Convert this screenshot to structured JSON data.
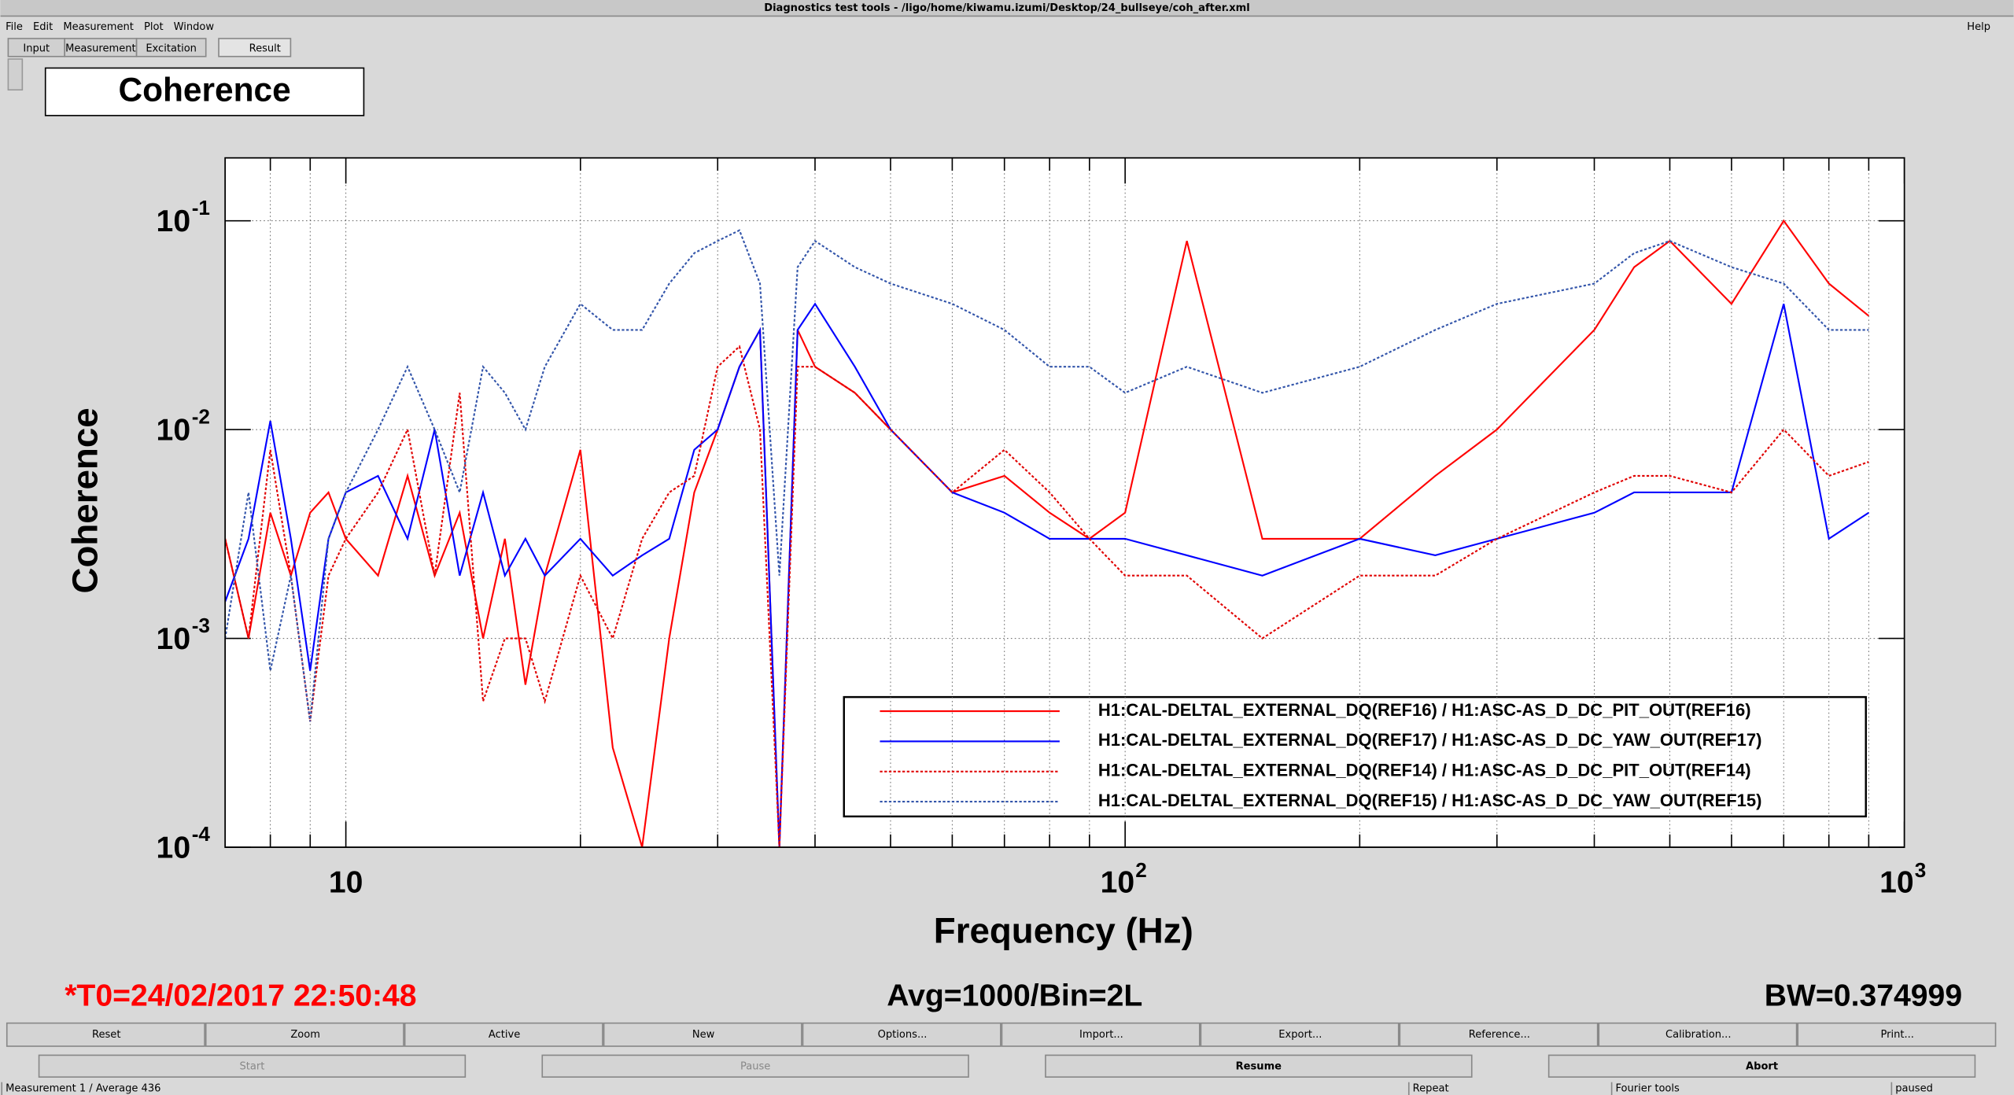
{
  "window_title": "Diagnostics test tools - /ligo/home/kiwamu.izumi/Desktop/24_bullseye/coh_after.xml",
  "menu": [
    "File",
    "Edit",
    "Measurement",
    "Plot",
    "Window"
  ],
  "help": "Help",
  "tabs": [
    "Input",
    "Measurement",
    "Excitation",
    "Result"
  ],
  "panel_title": "Coherence",
  "info": {
    "t0": "*T0=24/02/2017 22:50:48",
    "avg": "Avg=1000/Bin=2L",
    "bw": "BW=0.374999"
  },
  "buttons": [
    "Reset",
    "Zoom",
    "Active",
    "New",
    "Options...",
    "Import...",
    "Export...",
    "Reference...",
    "Calibration...",
    "Print..."
  ],
  "controls": [
    "Start",
    "Pause",
    "Resume",
    "Abort"
  ],
  "status": [
    "Measurement 1 / Average 436",
    "Repeat",
    "Fourier tools",
    "paused"
  ],
  "chart_data": {
    "type": "line",
    "xlabel": "Frequency (Hz)",
    "ylabel": "Coherence",
    "xlog": true,
    "ylog": true,
    "grid": true,
    "legend": "bottom right",
    "xlim": [
      7,
      1000
    ],
    "ylim": [
      0.0001,
      0.2
    ],
    "xticks": [
      10,
      {
        "value": 100,
        "label": "10",
        "exp": "2"
      },
      {
        "value": 1000,
        "label": "10",
        "exp": "3"
      }
    ],
    "minor_xticks": [
      8,
      9,
      20,
      30,
      40,
      50,
      60,
      70,
      80,
      90,
      200,
      300,
      400,
      500,
      600,
      700,
      800,
      900
    ],
    "yticks": [
      {
        "value": 0.0001,
        "label": "10",
        "exp": "-4"
      },
      {
        "value": 0.001,
        "label": "10",
        "exp": "-3"
      },
      {
        "value": 0.01,
        "label": "10",
        "exp": "-2"
      },
      {
        "value": 0.1,
        "label": "10",
        "exp": "-1"
      }
    ],
    "x": [
      7,
      7.5,
      8,
      8.5,
      9,
      9.5,
      10,
      11,
      12,
      13,
      14,
      15,
      16,
      17,
      18,
      20,
      22,
      24,
      26,
      28,
      30,
      32,
      34,
      36,
      38,
      40,
      45,
      50,
      60,
      70,
      80,
      90,
      100,
      120,
      150,
      200,
      250,
      300,
      400,
      450,
      500,
      600,
      700,
      800,
      900
    ],
    "series": [
      {
        "name": "H1:CAL-DELTAL_EXTERNAL_DQ(REF16) / H1:ASC-AS_D_DC_PIT_OUT(REF16)",
        "color": "#ff0000",
        "style": "solid",
        "values": [
          0.003,
          0.001,
          0.004,
          0.002,
          0.004,
          0.005,
          0.003,
          0.002,
          0.006,
          0.002,
          0.004,
          0.001,
          0.003,
          0.0006,
          0.002,
          0.008,
          0.0003,
          0.0001,
          0.001,
          0.005,
          0.01,
          0.02,
          0.03,
          0.0001,
          0.03,
          0.02,
          0.015,
          0.01,
          0.005,
          0.006,
          0.004,
          0.003,
          0.004,
          0.08,
          0.003,
          0.003,
          0.006,
          0.01,
          0.03,
          0.06,
          0.08,
          0.04,
          0.1,
          0.05,
          0.035
        ]
      },
      {
        "name": "H1:CAL-DELTAL_EXTERNAL_DQ(REF17) / H1:ASC-AS_D_DC_YAW_OUT(REF17)",
        "color": "#0000ff",
        "style": "solid",
        "values": [
          0.0015,
          0.003,
          0.011,
          0.003,
          0.0007,
          0.003,
          0.005,
          0.006,
          0.003,
          0.01,
          0.002,
          0.005,
          0.002,
          0.003,
          0.002,
          0.003,
          0.002,
          0.0025,
          0.003,
          0.008,
          0.01,
          0.02,
          0.03,
          0.0001,
          0.03,
          0.04,
          0.02,
          0.01,
          0.005,
          0.004,
          0.003,
          0.003,
          0.003,
          0.0025,
          0.002,
          0.003,
          0.0025,
          0.003,
          0.004,
          0.005,
          0.005,
          0.005,
          0.04,
          0.003,
          0.004
        ]
      },
      {
        "name": "H1:CAL-DELTAL_EXTERNAL_DQ(REF14) / H1:ASC-AS_D_DC_PIT_OUT(REF14)",
        "color": "#e00000",
        "style": "dotted",
        "values": [
          0.003,
          0.001,
          0.008,
          0.002,
          0.0004,
          0.002,
          0.003,
          0.005,
          0.01,
          0.002,
          0.015,
          0.0005,
          0.001,
          0.001,
          0.0005,
          0.002,
          0.001,
          0.003,
          0.005,
          0.006,
          0.02,
          0.025,
          0.01,
          0.0001,
          0.02,
          0.02,
          0.015,
          0.01,
          0.005,
          0.008,
          0.005,
          0.003,
          0.002,
          0.002,
          0.001,
          0.002,
          0.002,
          0.003,
          0.005,
          0.006,
          0.006,
          0.005,
          0.01,
          0.006,
          0.007
        ]
      },
      {
        "name": "H1:CAL-DELTAL_EXTERNAL_DQ(REF15) / H1:ASC-AS_D_DC_YAW_OUT(REF15)",
        "color": "#3355aa",
        "style": "dotted",
        "values": [
          0.001,
          0.005,
          0.0007,
          0.002,
          0.0004,
          0.003,
          0.005,
          0.01,
          0.02,
          0.01,
          0.005,
          0.02,
          0.015,
          0.01,
          0.02,
          0.04,
          0.03,
          0.03,
          0.05,
          0.07,
          0.08,
          0.09,
          0.05,
          0.002,
          0.06,
          0.08,
          0.06,
          0.05,
          0.04,
          0.03,
          0.02,
          0.02,
          0.015,
          0.02,
          0.015,
          0.02,
          0.03,
          0.04,
          0.05,
          0.07,
          0.08,
          0.06,
          0.05,
          0.03,
          0.03
        ]
      }
    ]
  }
}
